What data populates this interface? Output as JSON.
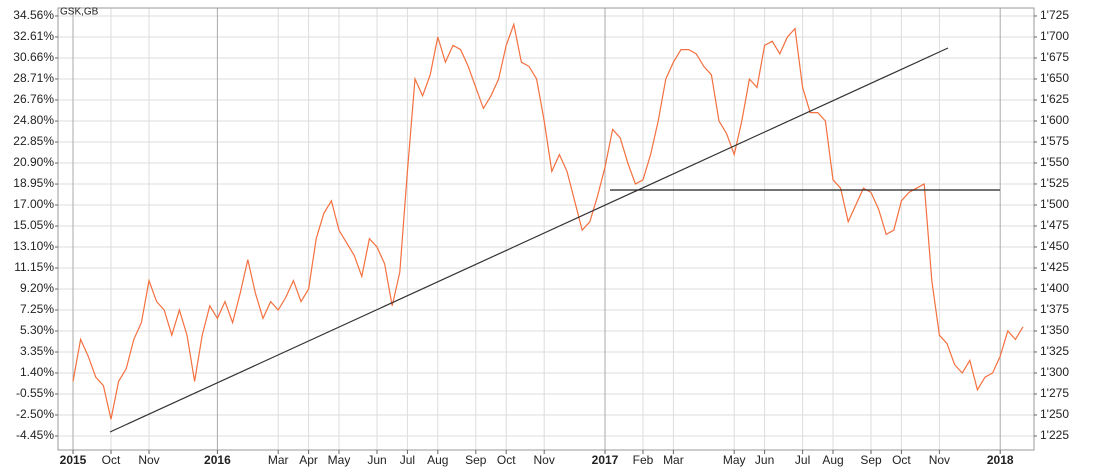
{
  "chart_data": {
    "type": "line",
    "categories": [
      "2015",
      null,
      null,
      null,
      null,
      "Oct",
      null,
      null,
      null,
      null,
      "Nov",
      null,
      null,
      null,
      null,
      null,
      null,
      null,
      null,
      "2016",
      null,
      null,
      null,
      null,
      null,
      null,
      null,
      "Mar",
      null,
      null,
      null,
      "Apr",
      null,
      null,
      null,
      "May",
      null,
      null,
      null,
      null,
      "Jun",
      null,
      null,
      null,
      "Jul",
      null,
      null,
      null,
      "Aug",
      null,
      null,
      null,
      null,
      "Sep",
      null,
      null,
      null,
      "Oct",
      null,
      null,
      null,
      null,
      "Nov",
      null,
      null,
      null,
      null,
      null,
      null,
      null,
      "2017",
      null,
      null,
      null,
      null,
      "Feb",
      null,
      null,
      null,
      "Mar",
      null,
      null,
      null,
      null,
      null,
      null,
      null,
      "May",
      null,
      null,
      null,
      "Jun",
      null,
      null,
      null,
      null,
      "Jul",
      null,
      null,
      null,
      "Aug",
      null,
      null,
      null,
      null,
      "Sep",
      null,
      null,
      null,
      "Oct",
      null,
      null,
      null,
      null,
      "Nov",
      null,
      null,
      null,
      null,
      null,
      null,
      null,
      "2018",
      null,
      null,
      null
    ],
    "series": [
      {
        "name": "GSK,GB",
        "color": "#f4703f",
        "axis": "y2",
        "values": [
          1290,
          1340,
          1320,
          1295,
          1285,
          1245,
          1290,
          1305,
          1340,
          1360,
          1410,
          1385,
          1375,
          1345,
          1375,
          1345,
          1290,
          1345,
          1380,
          1365,
          1385,
          1360,
          1395,
          1435,
          1395,
          1365,
          1385,
          1375,
          1390,
          1410,
          1385,
          1400,
          1460,
          1490,
          1505,
          1470,
          1455,
          1440,
          1415,
          1460,
          1450,
          1430,
          1380,
          1420,
          1540,
          1650,
          1630,
          1655,
          1700,
          1670,
          1690,
          1685,
          1665,
          1640,
          1615,
          1630,
          1650,
          1690,
          1715,
          1670,
          1665,
          1650,
          1600,
          1540,
          1560,
          1540,
          1505,
          1470,
          1480,
          1510,
          1545,
          1590,
          1580,
          1550,
          1525,
          1530,
          1560,
          1600,
          1650,
          1670,
          1685,
          1685,
          1680,
          1665,
          1655,
          1600,
          1585,
          1560,
          1600,
          1650,
          1640,
          1690,
          1695,
          1680,
          1700,
          1710,
          1640,
          1610,
          1610,
          1600,
          1530,
          1520,
          1480,
          1500,
          1520,
          1515,
          1495,
          1465,
          1470,
          1505,
          1515,
          1520,
          1525,
          1410,
          1345,
          1335,
          1310,
          1300,
          1315,
          1280,
          1295,
          1300,
          1320,
          1350,
          1340,
          1355
        ]
      }
    ],
    "ylim": [
      -5.75,
      35.3
    ],
    "yticks": [
      {
        "value": 34.56,
        "label": "34.56%"
      },
      {
        "value": 32.61,
        "label": "32.61%"
      },
      {
        "value": 30.66,
        "label": "30.66%"
      },
      {
        "value": 28.71,
        "label": "28.71%"
      },
      {
        "value": 26.76,
        "label": "26.76%"
      },
      {
        "value": 24.8,
        "label": "24.80%"
      },
      {
        "value": 22.85,
        "label": "22.85%"
      },
      {
        "value": 20.9,
        "label": "20.90%"
      },
      {
        "value": 18.95,
        "label": "18.95%"
      },
      {
        "value": 17,
        "label": "17.00%"
      },
      {
        "value": 15.05,
        "label": "15.05%"
      },
      {
        "value": 13.1,
        "label": "13.10%"
      },
      {
        "value": 11.15,
        "label": "11.15%"
      },
      {
        "value": 9.2,
        "label": "9.20%"
      },
      {
        "value": 7.25,
        "label": "7.25%"
      },
      {
        "value": 5.3,
        "label": "5.30%"
      },
      {
        "value": 3.35,
        "label": "3.35%"
      },
      {
        "value": 1.4,
        "label": "1.40%"
      },
      {
        "value": -0.55,
        "label": "-0.55%"
      },
      {
        "value": -2.5,
        "label": "-2.50%"
      },
      {
        "value": -4.45,
        "label": "-4.45%"
      }
    ],
    "y2lim": [
      1208.3,
      1734.5
    ],
    "y2ticks": [
      {
        "value": 1725,
        "label": "1'725"
      },
      {
        "value": 1700,
        "label": "1'700"
      },
      {
        "value": 1675,
        "label": "1'675"
      },
      {
        "value": 1650,
        "label": "1'650"
      },
      {
        "value": 1625,
        "label": "1'625"
      },
      {
        "value": 1600,
        "label": "1'600"
      },
      {
        "value": 1575,
        "label": "1'575"
      },
      {
        "value": 1550,
        "label": "1'550"
      },
      {
        "value": 1525,
        "label": "1'525"
      },
      {
        "value": 1500,
        "label": "1'500"
      },
      {
        "value": 1475,
        "label": "1'475"
      },
      {
        "value": 1450,
        "label": "1'450"
      },
      {
        "value": 1425,
        "label": "1'425"
      },
      {
        "value": 1400,
        "label": "1'400"
      },
      {
        "value": 1375,
        "label": "1'375"
      },
      {
        "value": 1350,
        "label": "1'350"
      },
      {
        "value": 1325,
        "label": "1'325"
      },
      {
        "value": 1300,
        "label": "1'300"
      },
      {
        "value": 1275,
        "label": "1'275"
      },
      {
        "value": 1250,
        "label": "1'250"
      },
      {
        "value": 1225,
        "label": "1'225"
      }
    ],
    "grid": true
  }
}
